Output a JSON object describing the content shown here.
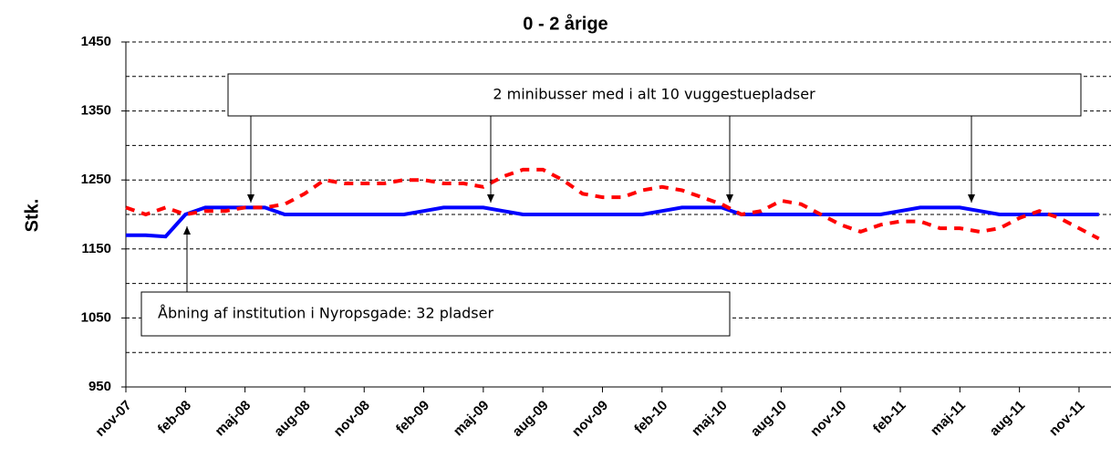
{
  "chart_data": {
    "type": "line",
    "title": "0 - 2 årige",
    "y_label": "Stk.",
    "categories": [
      "nov-07",
      null,
      null,
      "feb-08",
      null,
      null,
      "maj-08",
      null,
      null,
      "aug-08",
      null,
      null,
      "nov-08",
      null,
      null,
      "feb-09",
      null,
      null,
      "maj-09",
      null,
      null,
      "aug-09",
      null,
      null,
      "nov-09",
      null,
      null,
      "feb-10",
      null,
      null,
      "maj-10",
      null,
      null,
      "aug-10",
      null,
      null,
      "nov-10",
      null,
      null,
      "feb-11",
      null,
      null,
      "maj-11",
      null,
      null,
      "aug-11",
      null,
      null,
      "nov-11",
      null
    ],
    "series": [
      {
        "color": "#0000ff",
        "style": "solid",
        "values": [
          1170,
          1170,
          1168,
          1200,
          1210,
          1210,
          1210,
          1210,
          1200,
          1200,
          1200,
          1200,
          1200,
          1200,
          1200,
          1205,
          1210,
          1210,
          1210,
          1205,
          1200,
          1200,
          1200,
          1200,
          1200,
          1200,
          1200,
          1205,
          1210,
          1210,
          1210,
          1200,
          1200,
          1200,
          1200,
          1200,
          1200,
          1200,
          1200,
          1205,
          1210,
          1210,
          1210,
          1205,
          1200,
          1200,
          1200,
          1200,
          1200,
          1200
        ]
      },
      {
        "color": "#ff0000",
        "style": "dashed",
        "values": [
          1210,
          1200,
          1210,
          1200,
          1205,
          1205,
          1210,
          1210,
          1215,
          1230,
          1250,
          1245,
          1245,
          1245,
          1250,
          1250,
          1245,
          1245,
          1240,
          1255,
          1265,
          1265,
          1250,
          1230,
          1225,
          1225,
          1235,
          1240,
          1235,
          1225,
          1215,
          1200,
          1205,
          1220,
          1215,
          1200,
          1185,
          1175,
          1185,
          1190,
          1190,
          1180,
          1180,
          1175,
          1180,
          1195,
          1205,
          1195,
          1180,
          1165
        ]
      }
    ],
    "ylim": [
      950,
      1450
    ],
    "yticks": [
      950,
      1050,
      1150,
      1250,
      1350,
      1450
    ],
    "y_minor_grid": [
      1000,
      1100,
      1200,
      1300,
      1400
    ],
    "grid": true,
    "annotations": [
      "2 minibusser med i alt 10 vuggestuepladser",
      "Åbning af institution i Nyropsgade: 32 pladser"
    ]
  }
}
